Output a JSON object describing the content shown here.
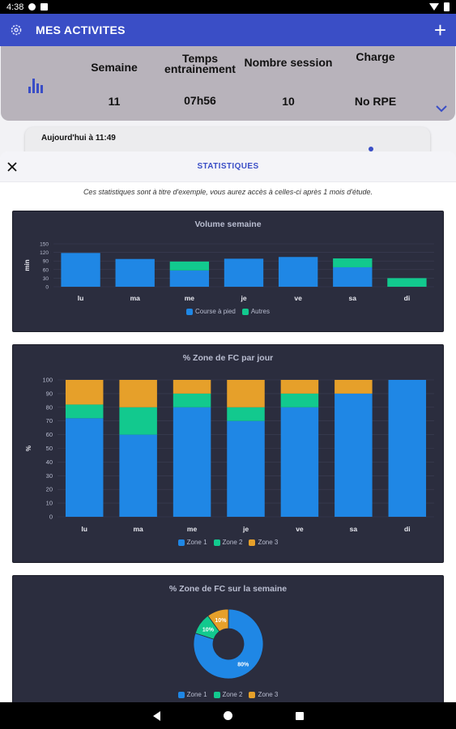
{
  "status_bar": {
    "time": "4:38"
  },
  "app_bar": {
    "title": "MES ACTIVITES",
    "add_label": "+"
  },
  "summary": {
    "columns": [
      {
        "header": "Semaine",
        "value": "11"
      },
      {
        "header": "Temps\nentrainement",
        "value": "07h56"
      },
      {
        "header": "Nombre session",
        "value": "10"
      },
      {
        "header": "Charge",
        "value": "No RPE"
      }
    ]
  },
  "activity_card": {
    "label": "Aujourd'hui à 11:49"
  },
  "sheet": {
    "title": "STATISTIQUES",
    "note": "Ces statistiques sont à titre d'exemple, vous aurez accès à celles-ci après 1 mois d'étude."
  },
  "colors": {
    "blue": "#1f87e5",
    "green": "#12c98e",
    "orange": "#e6a02a",
    "primary": "#3a4ec6"
  },
  "chart_data": [
    {
      "type": "bar",
      "title": "Volume semaine",
      "ylabel": "min",
      "ylim": [
        0,
        150
      ],
      "yticks": [
        "0",
        "30",
        "60",
        "90",
        "120",
        "150"
      ],
      "categories": [
        "lu",
        "ma",
        "me",
        "je",
        "ve",
        "sa",
        "di"
      ],
      "stacked": true,
      "series": [
        {
          "name": "Course à pied",
          "color": "#1f87e5",
          "values": [
            118,
            97,
            57,
            98,
            104,
            68,
            0
          ]
        },
        {
          "name": "Autres",
          "color": "#12c98e",
          "values": [
            0,
            0,
            31,
            0,
            0,
            31,
            30
          ]
        }
      ],
      "legend": "bottom"
    },
    {
      "type": "bar",
      "title": "% Zone de FC par jour",
      "ylabel": "%",
      "ylim": [
        0,
        100
      ],
      "yticks": [
        "0",
        "10",
        "20",
        "30",
        "40",
        "50",
        "60",
        "70",
        "80",
        "90",
        "100"
      ],
      "categories": [
        "lu",
        "ma",
        "me",
        "je",
        "ve",
        "sa",
        "di"
      ],
      "stacked": true,
      "series": [
        {
          "name": "Zone 1",
          "color": "#1f87e5",
          "values": [
            72,
            60,
            80,
            70,
            80,
            90,
            100
          ]
        },
        {
          "name": "Zone 2",
          "color": "#12c98e",
          "values": [
            10,
            20,
            10,
            10,
            10,
            0,
            0
          ]
        },
        {
          "name": "Zone 3",
          "color": "#e6a02a",
          "values": [
            18,
            20,
            10,
            20,
            10,
            10,
            0
          ]
        }
      ],
      "legend": "bottom"
    },
    {
      "type": "pie",
      "title": "% Zone de FC sur la semaine",
      "donut": true,
      "slices": [
        {
          "name": "Zone 1",
          "color": "#1f87e5",
          "value": 80,
          "label": "80%"
        },
        {
          "name": "Zone 2",
          "color": "#12c98e",
          "value": 10,
          "label": "10%"
        },
        {
          "name": "Zone 3",
          "color": "#e6a02a",
          "value": 10,
          "label": "10%"
        }
      ],
      "legend": "bottom"
    }
  ]
}
